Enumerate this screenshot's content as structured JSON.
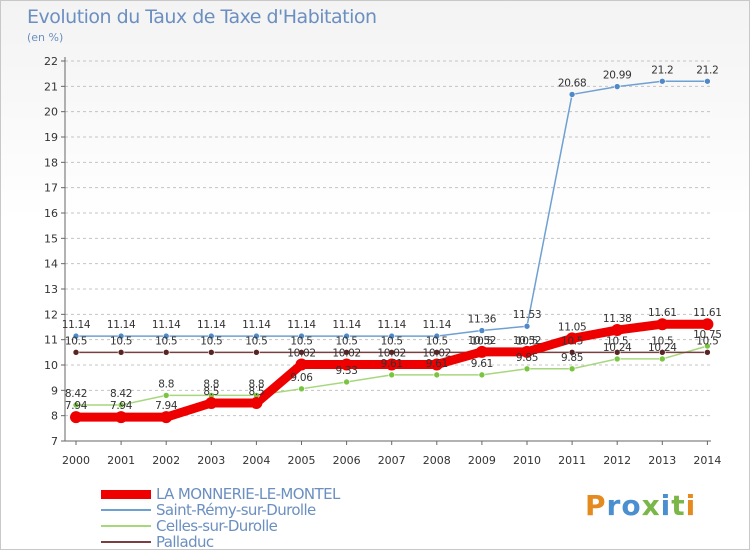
{
  "title": "Evolution du Taux de Taxe d'Habitation",
  "unit": "(en %)",
  "logo": "Proxiti",
  "colors": {
    "axis": "#666666",
    "grid": "#c4c4c4",
    "text": "#6b8fc0"
  },
  "chart_data": {
    "type": "line",
    "title": "Evolution du Taux de Taxe d'Habitation",
    "ylabel": "(en %)",
    "xlabel": "",
    "ylim": [
      7,
      22
    ],
    "yticks": [
      7,
      8,
      9,
      10,
      11,
      12,
      13,
      14,
      15,
      16,
      17,
      18,
      19,
      20,
      21,
      22
    ],
    "grid": "horizontal dashed",
    "legend": "bottom-left",
    "x": [
      "2000",
      "2001",
      "2002",
      "2003",
      "2004",
      "2005",
      "2006",
      "2007",
      "2008",
      "2009",
      "2010",
      "2011",
      "2012",
      "2013",
      "2014"
    ],
    "series": [
      {
        "name": "LA MONNERIE-LE-MONTEL",
        "color": "#ee0000",
        "line_width": 9,
        "marker_r": 6,
        "values": [
          7.94,
          7.94,
          7.94,
          8.5,
          8.5,
          10.02,
          10.02,
          10.02,
          10.02,
          10.52,
          10.52,
          11.05,
          11.38,
          11.61,
          11.61
        ],
        "labels": [
          "7.94",
          "7.94",
          "7.94",
          "8.5",
          "8.5",
          "10.02",
          "10.02",
          "10.02",
          "10.02",
          "10.52",
          "10.52",
          "11.05",
          "11.38",
          "11.61",
          "11.61"
        ]
      },
      {
        "name": "Saint-Rémy-sur-Durolle",
        "color": "#6fa0d2",
        "line_width": 1.5,
        "marker_r": 3,
        "marker_fill": "#4f89c8",
        "values": [
          11.14,
          11.14,
          11.14,
          11.14,
          11.14,
          11.14,
          11.14,
          11.14,
          11.14,
          11.36,
          11.53,
          20.68,
          20.99,
          21.2,
          21.2
        ],
        "labels": [
          "11.14",
          "11.14",
          "11.14",
          "11.14",
          "11.14",
          "11.14",
          "11.14",
          "11.14",
          "11.14",
          "11.36",
          "11.53",
          "20.68",
          "20.99",
          "21.2",
          "21.2"
        ]
      },
      {
        "name": "Celles-sur-Durolle",
        "color": "#a6d77d",
        "line_width": 1.5,
        "marker_r": 3,
        "marker_fill": "#79c440",
        "values": [
          8.42,
          8.42,
          8.8,
          8.8,
          8.8,
          9.06,
          9.33,
          9.61,
          9.61,
          9.61,
          9.85,
          9.85,
          10.24,
          10.24,
          10.75
        ],
        "labels": [
          "8.42",
          "8.42",
          "8.8",
          "8.8",
          "8.8",
          "9.06",
          "9.33",
          "9.61",
          "9.61",
          "9.61",
          "9.85",
          "9.85",
          "10.24",
          "10.24",
          "10.75"
        ]
      },
      {
        "name": "Palladuc",
        "color": "#7a4040",
        "line_width": 1.5,
        "marker_r": 3,
        "marker_fill": "#5a2424",
        "values": [
          10.5,
          10.5,
          10.5,
          10.5,
          10.5,
          10.5,
          10.5,
          10.5,
          10.5,
          10.5,
          10.5,
          10.5,
          10.5,
          10.5,
          10.5
        ],
        "labels": [
          "10.5",
          "10.5",
          "10.5",
          "10.5",
          "10.5",
          "10.5",
          "10.5",
          "10.5",
          "10.5",
          "10.5",
          "10.5",
          "10.5",
          "10.5",
          "10.5",
          "10.5"
        ]
      }
    ]
  }
}
